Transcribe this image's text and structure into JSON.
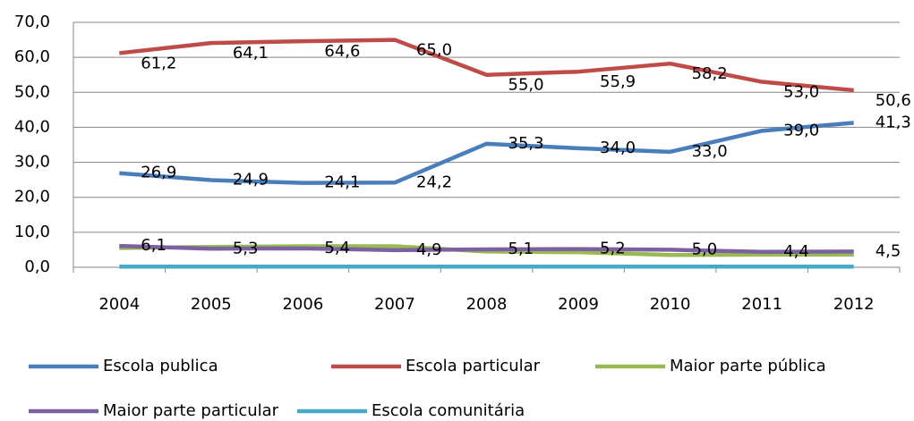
{
  "chart_data": {
    "type": "line",
    "categories": [
      "2004",
      "2005",
      "2006",
      "2007",
      "2008",
      "2009",
      "2010",
      "2011",
      "2012"
    ],
    "series": [
      {
        "name": "Escola publica",
        "color": "#4a7ebb",
        "values": [
          26.9,
          24.9,
          24.1,
          24.2,
          35.3,
          34.0,
          33.0,
          39.0,
          41.3
        ],
        "value_labels": [
          "26,9",
          "24,9",
          "24,1",
          "24,2",
          "35,3",
          "34,0",
          "33,0",
          "39,0",
          "41,3"
        ]
      },
      {
        "name": "Escola particular",
        "color": "#be4b48",
        "values": [
          61.2,
          64.1,
          64.6,
          65.0,
          55.0,
          55.9,
          58.2,
          53.0,
          50.6
        ],
        "value_labels": [
          "61,2",
          "64,1",
          "64,6",
          "65,0",
          "55,0",
          "55,9",
          "58,2",
          "53,0",
          "50,6"
        ]
      },
      {
        "name": "Maior parte pública",
        "color": "#98b954",
        "values": [
          5.5,
          5.8,
          6.0,
          6.0,
          4.5,
          4.3,
          3.5,
          3.6,
          3.6
        ]
      },
      {
        "name": "Maior parte particular",
        "color": "#7d60a0",
        "values": [
          6.1,
          5.3,
          5.4,
          4.9,
          5.1,
          5.2,
          5.0,
          4.4,
          4.5
        ],
        "value_labels": [
          "6,1",
          "5,3",
          "5,4",
          "4,9",
          "5,1",
          "5,2",
          "5,0",
          "4,4",
          "4,5"
        ]
      },
      {
        "name": "Escola comunitária",
        "color": "#46aac5",
        "values": [
          0.2,
          0.2,
          0.2,
          0.2,
          0.2,
          0.2,
          0.2,
          0.2,
          0.2
        ]
      }
    ],
    "ylim": [
      0,
      70
    ],
    "yticks": [
      {
        "value": 0,
        "label": "0,0"
      },
      {
        "value": 10,
        "label": "10,0"
      },
      {
        "value": 20,
        "label": "20,0"
      },
      {
        "value": 30,
        "label": "30,0"
      },
      {
        "value": 40,
        "label": "40,0"
      },
      {
        "value": 50,
        "label": "50,0"
      },
      {
        "value": 60,
        "label": "60,0"
      },
      {
        "value": 70,
        "label": "70,0"
      }
    ],
    "grid": true
  }
}
